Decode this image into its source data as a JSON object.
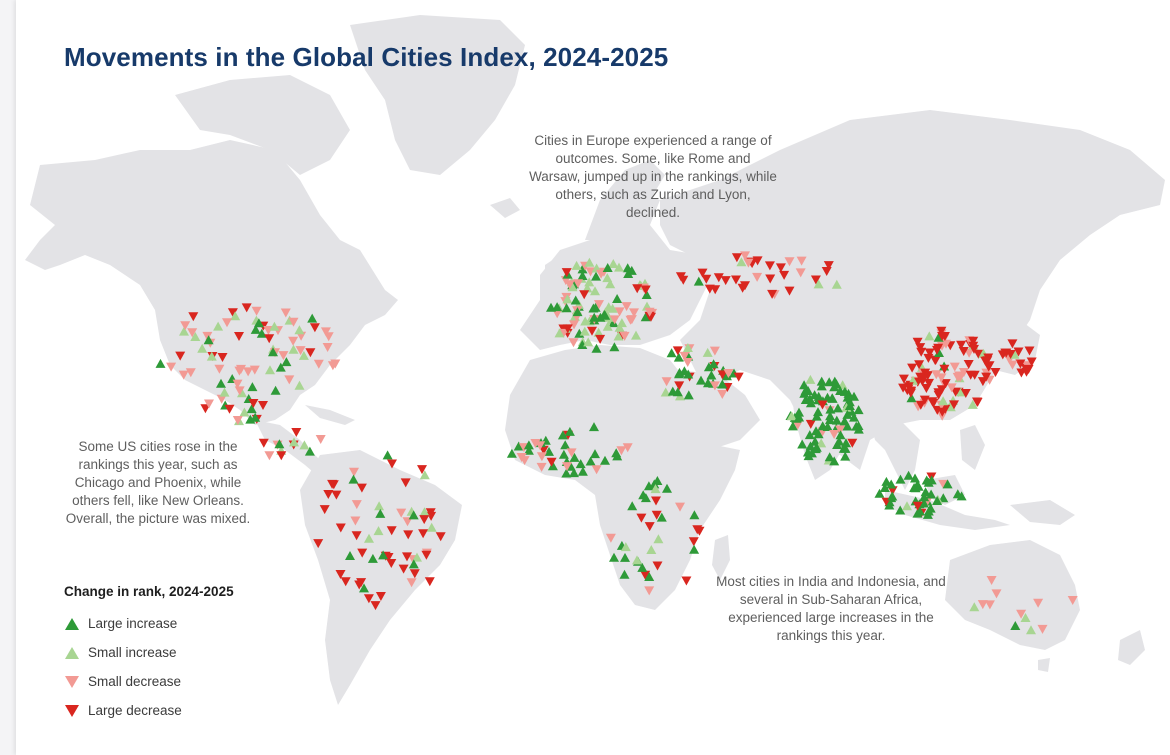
{
  "title": "Movements in the Global Cities Index, 2024-2025",
  "annotations": {
    "us": "Some US cities rose in the rankings this year, such as Chicago and Phoenix, while others fell, like New Orleans. Overall, the picture was mixed.",
    "europe": "Cities in Europe experienced a range of outcomes. Some, like Rome and Warsaw, jumped up in the rankings, while others, such as Zurich and Lyon, declined.",
    "india_africa": "Most cities in India and Indonesia, and several in Sub-Saharan Africa, experienced large increases in the rankings this year."
  },
  "legend": {
    "title": "Change in rank, 2024-2025",
    "items": [
      {
        "key": "large_increase",
        "label": "Large increase",
        "color": "#2e9a38",
        "shape": "up"
      },
      {
        "key": "small_increase",
        "label": "Small increase",
        "color": "#a8d592",
        "shape": "up"
      },
      {
        "key": "small_decrease",
        "label": "Small decrease",
        "color": "#f29a94",
        "shape": "down"
      },
      {
        "key": "large_decrease",
        "label": "Large decrease",
        "color": "#d9261f",
        "shape": "down"
      }
    ]
  },
  "colors": {
    "land": "#e3e3e6",
    "title": "#173a6a",
    "background": "#ffffff"
  }
}
